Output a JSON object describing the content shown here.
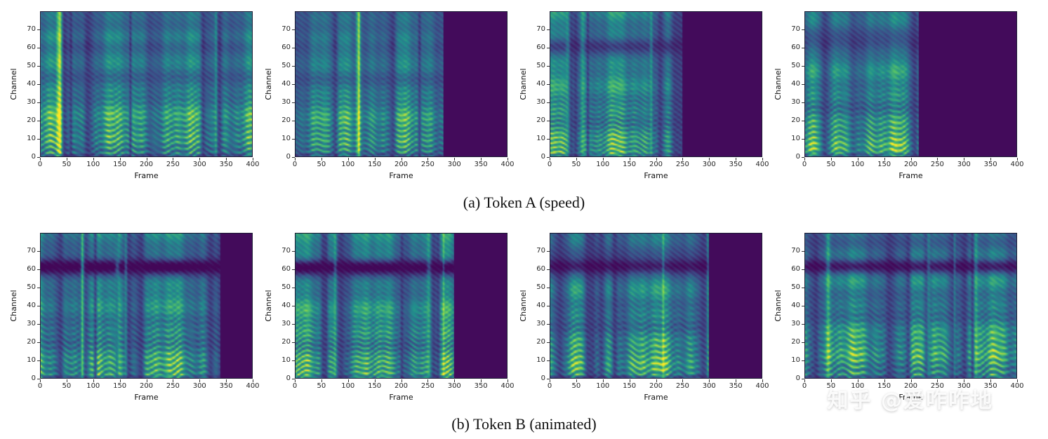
{
  "figure": {
    "background": "#ffffff",
    "caption_a": "(a) Token A (speed)",
    "caption_b": "(b) Token B (animated)",
    "watermark": "知乎 @爱咋咋地",
    "colors": {
      "viridis_stops": [
        "#440154",
        "#3b528b",
        "#21918c",
        "#5ec962",
        "#fde725"
      ],
      "empty_region": "#450457",
      "tick_text": "#262626",
      "caption_text": "#111111",
      "watermark_text": "#ffffff"
    }
  },
  "chart_data": [
    {
      "type": "heatmap",
      "row": 0,
      "col": 0,
      "group": "(a) Token A (speed)",
      "xlabel": "Frame",
      "ylabel": "Channel",
      "x_range": [
        0,
        400
      ],
      "y_range": [
        0,
        80
      ],
      "x_ticks": [
        0,
        50,
        100,
        150,
        200,
        250,
        300,
        350,
        400
      ],
      "y_ticks": [
        0,
        10,
        20,
        30,
        40,
        50,
        60,
        70
      ],
      "colormap": "viridis",
      "content_end_frame": 400,
      "top_dark_band": false,
      "seed": 101,
      "description": "mel-spectrogram, speech content fills full 0-400 frames"
    },
    {
      "type": "heatmap",
      "row": 0,
      "col": 1,
      "group": "(a) Token A (speed)",
      "xlabel": "Frame",
      "ylabel": "Channel",
      "x_range": [
        0,
        400
      ],
      "y_range": [
        0,
        80
      ],
      "x_ticks": [
        0,
        50,
        100,
        150,
        200,
        250,
        300,
        350,
        400
      ],
      "y_ticks": [
        0,
        10,
        20,
        30,
        40,
        50,
        60,
        70
      ],
      "colormap": "viridis",
      "content_end_frame": 280,
      "top_dark_band": false,
      "seed": 102,
      "description": "mel-spectrogram, speech content ends near frame 280, empty (dark) after"
    },
    {
      "type": "heatmap",
      "row": 0,
      "col": 2,
      "group": "(a) Token A (speed)",
      "xlabel": "Frame",
      "ylabel": "Channel",
      "x_range": [
        0,
        400
      ],
      "y_range": [
        0,
        80
      ],
      "x_ticks": [
        0,
        50,
        100,
        150,
        200,
        250,
        300,
        350,
        400
      ],
      "y_ticks": [
        0,
        10,
        20,
        30,
        40,
        50,
        60,
        70
      ],
      "colormap": "viridis",
      "content_end_frame": 250,
      "top_dark_band": false,
      "seed": 103,
      "description": "mel-spectrogram, speech content ends near frame 250, empty (dark) after"
    },
    {
      "type": "heatmap",
      "row": 0,
      "col": 3,
      "group": "(a) Token A (speed)",
      "xlabel": "Frame",
      "ylabel": "Channel",
      "x_range": [
        0,
        400
      ],
      "y_range": [
        0,
        80
      ],
      "x_ticks": [
        0,
        50,
        100,
        150,
        200,
        250,
        300,
        350,
        400
      ],
      "y_ticks": [
        0,
        10,
        20,
        30,
        40,
        50,
        60,
        70
      ],
      "colormap": "viridis",
      "content_end_frame": 215,
      "top_dark_band": false,
      "seed": 104,
      "description": "mel-spectrogram, speech content ends near frame 215, empty (dark) after"
    },
    {
      "type": "heatmap",
      "row": 1,
      "col": 0,
      "group": "(b) Token B (animated)",
      "xlabel": "Frame",
      "ylabel": "Channel",
      "x_range": [
        0,
        400
      ],
      "y_range": [
        0,
        80
      ],
      "x_ticks": [
        0,
        50,
        100,
        150,
        200,
        250,
        300,
        350,
        400
      ],
      "y_ticks": [
        0,
        10,
        20,
        30,
        40,
        50,
        60,
        70
      ],
      "colormap": "viridis",
      "content_end_frame": 340,
      "top_dark_band": true,
      "seed": 201,
      "description": "mel-spectrogram, speech content ends near frame 340, dark horizontal band near channel 62"
    },
    {
      "type": "heatmap",
      "row": 1,
      "col": 1,
      "group": "(b) Token B (animated)",
      "xlabel": "Frame",
      "ylabel": "Channel",
      "x_range": [
        0,
        400
      ],
      "y_range": [
        0,
        80
      ],
      "x_ticks": [
        0,
        50,
        100,
        150,
        200,
        250,
        300,
        350,
        400
      ],
      "y_ticks": [
        0,
        10,
        20,
        30,
        40,
        50,
        60,
        70
      ],
      "colormap": "viridis",
      "content_end_frame": 300,
      "top_dark_band": true,
      "seed": 202,
      "description": "mel-spectrogram, speech content ends near frame 300, dark horizontal band near channel 62"
    },
    {
      "type": "heatmap",
      "row": 1,
      "col": 2,
      "group": "(b) Token B (animated)",
      "xlabel": "Frame",
      "ylabel": "Channel",
      "x_range": [
        0,
        400
      ],
      "y_range": [
        0,
        80
      ],
      "x_ticks": [
        0,
        50,
        100,
        150,
        200,
        250,
        300,
        350,
        400
      ],
      "y_ticks": [
        0,
        10,
        20,
        30,
        40,
        50,
        60,
        70
      ],
      "colormap": "viridis",
      "content_end_frame": 300,
      "top_dark_band": true,
      "seed": 203,
      "description": "mel-spectrogram, speech content ends near frame 300, dark horizontal band near channel 62"
    },
    {
      "type": "heatmap",
      "row": 1,
      "col": 3,
      "group": "(b) Token B (animated)",
      "xlabel": "Frame",
      "ylabel": "Channel",
      "x_range": [
        0,
        400
      ],
      "y_range": [
        0,
        80
      ],
      "x_ticks": [
        0,
        50,
        100,
        150,
        200,
        250,
        300,
        350,
        400
      ],
      "y_ticks": [
        0,
        10,
        20,
        30,
        40,
        50,
        60,
        70
      ],
      "colormap": "viridis",
      "content_end_frame": 400,
      "top_dark_band": true,
      "seed": 204,
      "description": "mel-spectrogram, speech content fills full 0-400 frames"
    }
  ]
}
